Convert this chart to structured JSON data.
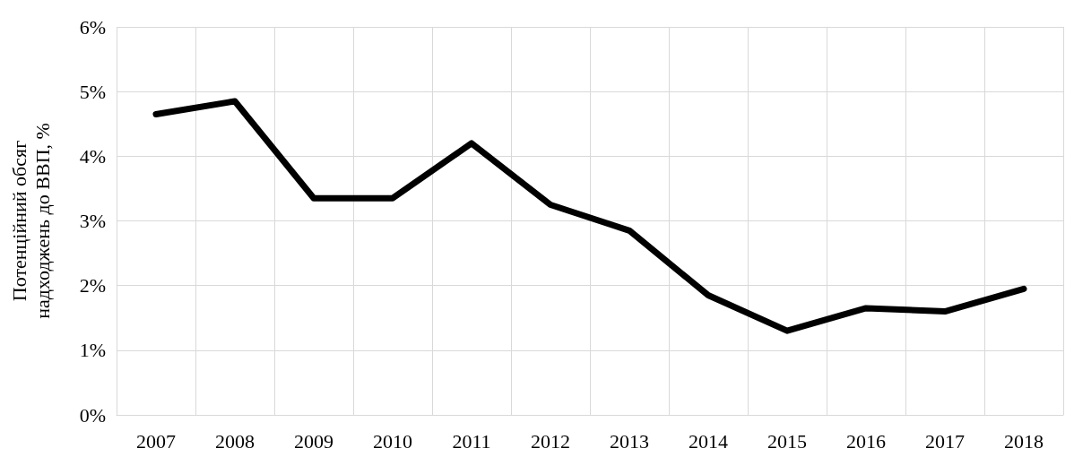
{
  "chart_data": {
    "type": "line",
    "ylabel": "Потенційний обсяг\nнадходжень до ВВП, %",
    "categories": [
      "2007",
      "2008",
      "2009",
      "2010",
      "2011",
      "2012",
      "2013",
      "2014",
      "2015",
      "2016",
      "2017",
      "2018"
    ],
    "series": [
      {
        "color": "#000000",
        "values": [
          4.65,
          4.85,
          3.35,
          3.35,
          4.2,
          3.25,
          2.85,
          1.85,
          1.3,
          1.65,
          1.6,
          1.95
        ]
      }
    ],
    "ylim": [
      0,
      6
    ],
    "yticks": [
      {
        "value": 0,
        "label": "0%"
      },
      {
        "value": 1,
        "label": "1%"
      },
      {
        "value": 2,
        "label": "2%"
      },
      {
        "value": 3,
        "label": "3%"
      },
      {
        "value": 4,
        "label": "4%"
      },
      {
        "value": 5,
        "label": "5%"
      },
      {
        "value": 6,
        "label": "6%"
      }
    ],
    "grid": true,
    "marker": "none",
    "line_style": "solid"
  }
}
